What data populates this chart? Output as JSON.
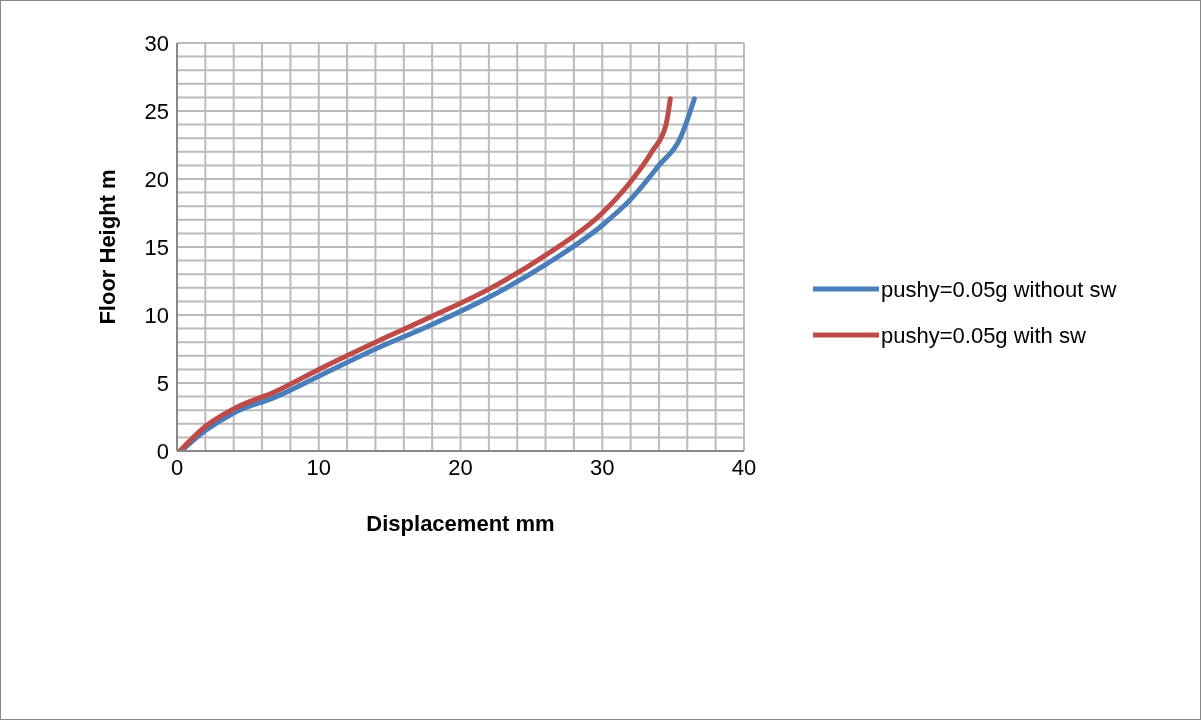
{
  "chart_data": {
    "type": "line",
    "xlabel": "Displacement  mm",
    "ylabel": "Floor Height  m",
    "xlim": [
      0,
      40
    ],
    "ylim": [
      0,
      30
    ],
    "xticks": [
      0,
      {
        "value": 2,
        "label": null
      },
      {
        "value": 4,
        "label": null
      },
      {
        "value": 6,
        "label": null
      },
      {
        "value": 8,
        "label": null
      },
      10,
      {
        "value": 12,
        "label": null
      },
      {
        "value": 14,
        "label": null
      },
      {
        "value": 16,
        "label": null
      },
      {
        "value": 18,
        "label": null
      },
      20,
      {
        "value": 22,
        "label": null
      },
      {
        "value": 24,
        "label": null
      },
      {
        "value": 26,
        "label": null
      },
      {
        "value": 28,
        "label": null
      },
      30,
      {
        "value": 32,
        "label": null
      },
      {
        "value": 34,
        "label": null
      },
      {
        "value": 36,
        "label": null
      },
      {
        "value": 38,
        "label": null
      },
      40
    ],
    "yticks": [
      0,
      {
        "value": 1,
        "label": null
      },
      {
        "value": 2,
        "label": null
      },
      {
        "value": 3,
        "label": null
      },
      {
        "value": 4,
        "label": null
      },
      5,
      {
        "value": 6,
        "label": null
      },
      {
        "value": 7,
        "label": null
      },
      {
        "value": 8,
        "label": null
      },
      {
        "value": 9,
        "label": null
      },
      10,
      {
        "value": 11,
        "label": null
      },
      {
        "value": 12,
        "label": null
      },
      {
        "value": 13,
        "label": null
      },
      {
        "value": 14,
        "label": null
      },
      15,
      {
        "value": 16,
        "label": null
      },
      {
        "value": 17,
        "label": null
      },
      {
        "value": 18,
        "label": null
      },
      {
        "value": 19,
        "label": null
      },
      20,
      {
        "value": 21,
        "label": null
      },
      {
        "value": 22,
        "label": null
      },
      {
        "value": 23,
        "label": null
      },
      {
        "value": 24,
        "label": null
      },
      25,
      {
        "value": 26,
        "label": null
      },
      {
        "value": 27,
        "label": null
      },
      {
        "value": 28,
        "label": null
      },
      {
        "value": 29,
        "label": null
      },
      30
    ],
    "grid": true,
    "legend": "right",
    "marker": "none",
    "line_style": "solid",
    "series": [
      {
        "name": "pushy=0.05g without sw",
        "color": "#4a7ebb",
        "x": [
          0.3,
          2,
          4,
          7,
          10,
          14,
          18,
          22,
          26,
          30,
          32,
          34,
          35.5,
          36.5
        ],
        "values": [
          0,
          1.5,
          2.8,
          4,
          5.5,
          7.5,
          9.3,
          11.3,
          13.7,
          16.6,
          18.5,
          21,
          23,
          25.9
        ]
      },
      {
        "name": "pushy=0.05g with sw",
        "color": "#be4b48",
        "x": [
          0.2,
          2,
          4,
          7,
          10,
          14,
          18,
          22,
          26,
          30,
          32,
          33.5,
          34.5,
          34.8
        ],
        "values": [
          0,
          1.8,
          3.1,
          4.4,
          6,
          8,
          9.9,
          11.9,
          14.4,
          17.5,
          19.8,
          22,
          24,
          25.9
        ]
      }
    ]
  }
}
